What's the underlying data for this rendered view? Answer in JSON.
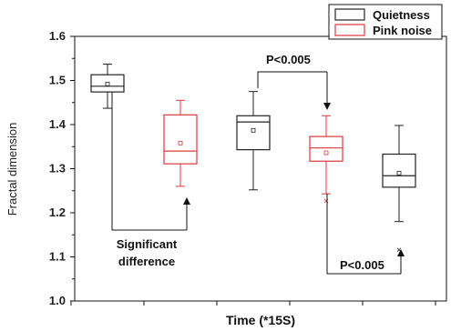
{
  "chart_data": {
    "type": "box",
    "xlabel": "Time (*15S)",
    "ylabel": "Fractal dimension",
    "ylim": [
      1.0,
      1.6
    ],
    "yticks": [
      "1.0",
      "1.1",
      "1.2",
      "1.3",
      "1.4",
      "1.5",
      "1.6"
    ],
    "grid": false,
    "legend_position": "top-right",
    "legend": [
      {
        "label": "Quietness",
        "color": "#222222"
      },
      {
        "label": "Pink noise",
        "color": "#d9383a"
      }
    ],
    "boxes": [
      {
        "series": "Quietness",
        "color": "#222222",
        "whisker_low": 1.437,
        "q1": 1.474,
        "median": 1.487,
        "q3": 1.513,
        "whisker_high": 1.537,
        "mean": 1.492,
        "outliers": []
      },
      {
        "series": "Pink noise",
        "color": "#d9383a",
        "whisker_low": 1.26,
        "q1": 1.311,
        "median": 1.34,
        "q3": 1.422,
        "whisker_high": 1.455,
        "mean": 1.358,
        "outliers": []
      },
      {
        "series": "Quietness",
        "color": "#222222",
        "whisker_low": 1.252,
        "q1": 1.343,
        "median": 1.406,
        "q3": 1.42,
        "whisker_high": 1.475,
        "mean": 1.387,
        "outliers": []
      },
      {
        "series": "Pink noise",
        "color": "#d9383a",
        "whisker_low": 1.243,
        "q1": 1.317,
        "median": 1.347,
        "q3": 1.373,
        "whisker_high": 1.42,
        "mean": 1.336,
        "outliers": [
          1.227
        ]
      },
      {
        "series": "Quietness",
        "color": "#222222",
        "whisker_low": 1.18,
        "q1": 1.258,
        "median": 1.284,
        "q3": 1.333,
        "whisker_high": 1.398,
        "mean": 1.29,
        "outliers": [
          1.116
        ]
      }
    ],
    "annotations": {
      "significant_line1": "Significant",
      "significant_line2": "difference",
      "p_top": "P<0.005",
      "p_bottom": "P<0.005"
    }
  }
}
